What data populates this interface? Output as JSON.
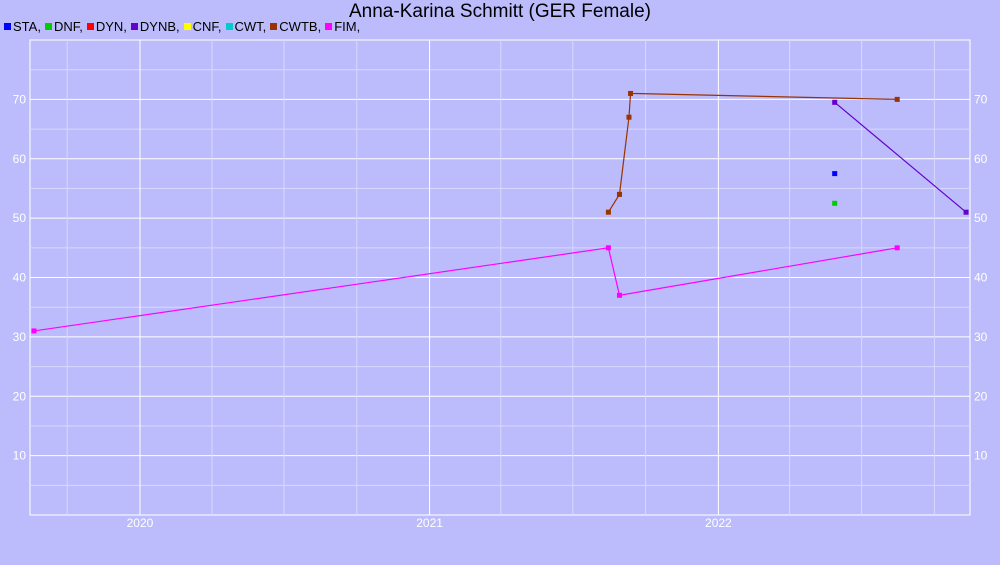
{
  "chart_data": {
    "type": "line",
    "title": "Anna-Karina Schmitt (GER Female)",
    "legend": [
      {
        "label": "STA,",
        "color": "#0000ff"
      },
      {
        "label": "DNF,",
        "color": "#00cc00"
      },
      {
        "label": "DYN,",
        "color": "#ff0000"
      },
      {
        "label": "DYNB,",
        "color": "#6600cc"
      },
      {
        "label": "CNF,",
        "color": "#ffff00"
      },
      {
        "label": "CWT,",
        "color": "#00cccc"
      },
      {
        "label": "CWTB,",
        "color": "#993300"
      },
      {
        "label": "FIM,",
        "color": "#ff00ff"
      }
    ],
    "x_axis": {
      "type": "date",
      "range": [
        "2019-08-15",
        "2022-11-15"
      ],
      "tick_labels": [
        "2020",
        "2021",
        "2022"
      ],
      "tick_values": [
        "2020-01-01",
        "2021-01-01",
        "2022-01-01"
      ]
    },
    "y_axis": {
      "range": [
        0,
        80
      ],
      "ticks": [
        10,
        20,
        30,
        40,
        50,
        60,
        70
      ],
      "grid": true
    },
    "series": [
      {
        "key": "STA",
        "color": "#0000ff",
        "points": [
          {
            "x": "2022-05-28",
            "y": 57.5
          }
        ]
      },
      {
        "key": "DNF",
        "color": "#00cc00",
        "points": [
          {
            "x": "2022-05-28",
            "y": 52.5
          }
        ]
      },
      {
        "key": "DYNB",
        "color": "#6600cc",
        "points": [
          {
            "x": "2022-05-28",
            "y": 69.5
          },
          {
            "x": "2022-11-10",
            "y": 51
          }
        ]
      },
      {
        "key": "CWTB",
        "color": "#993300",
        "points": [
          {
            "x": "2021-08-15",
            "y": 51
          },
          {
            "x": "2021-08-29",
            "y": 54
          },
          {
            "x": "2021-09-10",
            "y": 67
          },
          {
            "x": "2021-09-12",
            "y": 71
          },
          {
            "x": "2022-08-15",
            "y": 70
          }
        ]
      },
      {
        "key": "FIM",
        "color": "#ff00ff",
        "points": [
          {
            "x": "2019-08-20",
            "y": 31
          },
          {
            "x": "2021-08-15",
            "y": 45
          },
          {
            "x": "2021-08-29",
            "y": 37
          },
          {
            "x": "2022-08-15",
            "y": 45
          }
        ]
      }
    ]
  }
}
